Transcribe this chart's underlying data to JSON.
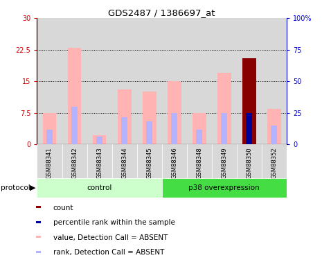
{
  "title": "GDS2487 / 1386697_at",
  "samples": [
    "GSM88341",
    "GSM88342",
    "GSM88343",
    "GSM88344",
    "GSM88345",
    "GSM88346",
    "GSM88348",
    "GSM88349",
    "GSM88350",
    "GSM88352"
  ],
  "value_absent": [
    7.5,
    23.0,
    2.2,
    13.0,
    12.5,
    15.0,
    7.5,
    17.0,
    null,
    8.5
  ],
  "rank_absent_pct": [
    11.67,
    30.0,
    6.0,
    21.67,
    18.33,
    25.0,
    11.67,
    25.0,
    null,
    15.0
  ],
  "count": [
    null,
    null,
    null,
    null,
    null,
    null,
    null,
    null,
    20.5,
    null
  ],
  "percentile_rank_pct": [
    null,
    null,
    null,
    null,
    null,
    null,
    null,
    null,
    25.0,
    null
  ],
  "ylim_left": [
    0,
    30
  ],
  "ylim_right": [
    0,
    100
  ],
  "yticks_left": [
    0,
    7.5,
    15,
    22.5,
    30
  ],
  "yticks_right": [
    0,
    25,
    50,
    75,
    100
  ],
  "ytick_labels_left": [
    "0",
    "7.5",
    "15",
    "22.5",
    "30"
  ],
  "ytick_labels_right": [
    "0",
    "25",
    "50",
    "75",
    "100%"
  ],
  "color_value_absent": "#ffb3b3",
  "color_rank_absent": "#b3b3ff",
  "color_count": "#880000",
  "color_percentile": "#000099",
  "color_axis_left": "#cc0000",
  "color_axis_right": "#0000cc",
  "bg_color_col": "#d8d8d8",
  "bg_color_control": "#ccffcc",
  "bg_color_p38": "#44dd44",
  "n_control": 5,
  "n_p38": 5,
  "legend_items": [
    {
      "label": "count",
      "color": "#880000"
    },
    {
      "label": "percentile rank within the sample",
      "color": "#000099"
    },
    {
      "label": "value, Detection Call = ABSENT",
      "color": "#ffb3b3"
    },
    {
      "label": "rank, Detection Call = ABSENT",
      "color": "#b3b3ff"
    }
  ]
}
